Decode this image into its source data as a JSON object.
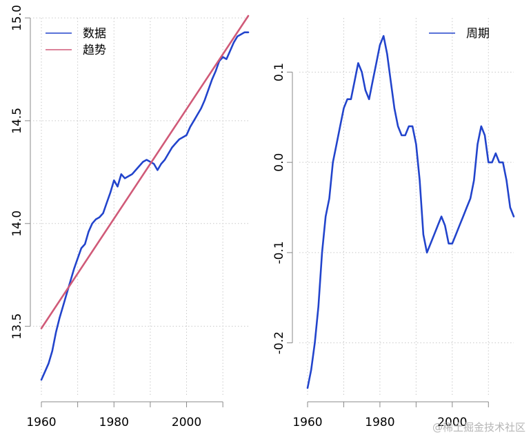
{
  "colors": {
    "data": "#2244cc",
    "trend": "#d05a78",
    "cycle": "#2244cc"
  },
  "watermark": "@稀土掘金技术社区",
  "chart_data": [
    {
      "type": "line",
      "xlim": [
        1960,
        2017
      ],
      "ylim": [
        13.2,
        15.0
      ],
      "x_ticks": [
        1960,
        1980,
        2000
      ],
      "x_ticks_unlabeled": [
        1970,
        1990,
        2010
      ],
      "y_ticks": [
        "13.5",
        "14.0",
        "14.5",
        "15.0"
      ],
      "grid": true,
      "legend_position": "top-left",
      "series": [
        {
          "name": "数据",
          "color": "#2244cc",
          "x": [
            1960,
            1961,
            1962,
            1963,
            1964,
            1965,
            1966,
            1967,
            1968,
            1969,
            1970,
            1971,
            1972,
            1973,
            1974,
            1975,
            1976,
            1977,
            1978,
            1979,
            1980,
            1981,
            1982,
            1983,
            1984,
            1985,
            1986,
            1987,
            1988,
            1989,
            1990,
            1991,
            1992,
            1993,
            1994,
            1995,
            1996,
            1997,
            1998,
            1999,
            2000,
            2001,
            2002,
            2003,
            2004,
            2005,
            2006,
            2007,
            2008,
            2009,
            2010,
            2011,
            2012,
            2013,
            2014,
            2015,
            2016,
            2017
          ],
          "values": [
            13.24,
            13.28,
            13.32,
            13.38,
            13.47,
            13.54,
            13.6,
            13.66,
            13.72,
            13.78,
            13.83,
            13.88,
            13.9,
            13.96,
            14.0,
            14.02,
            14.03,
            14.05,
            14.1,
            14.15,
            14.21,
            14.18,
            14.24,
            14.22,
            14.23,
            14.24,
            14.26,
            14.28,
            14.3,
            14.31,
            14.3,
            14.29,
            14.26,
            14.29,
            14.31,
            14.34,
            14.37,
            14.39,
            14.41,
            14.42,
            14.43,
            14.47,
            14.5,
            14.53,
            14.56,
            14.6,
            14.65,
            14.7,
            14.74,
            14.79,
            14.81,
            14.8,
            14.84,
            14.88,
            14.91,
            14.92,
            14.93,
            14.93
          ]
        },
        {
          "name": "趋势",
          "color": "#d05a78",
          "x": [
            1960,
            2017
          ],
          "values": [
            13.49,
            15.01
          ]
        }
      ]
    },
    {
      "type": "line",
      "xlim": [
        1960,
        2017
      ],
      "ylim": [
        -0.25,
        0.16
      ],
      "x_ticks": [
        1960,
        1980,
        2000
      ],
      "x_ticks_unlabeled": [
        1970,
        1990,
        2010
      ],
      "y_ticks": [
        "-0.2",
        "-0.1",
        "0.0",
        "0.1"
      ],
      "grid": true,
      "legend_position": "top-right",
      "series": [
        {
          "name": "周期",
          "color": "#2244cc",
          "x": [
            1960,
            1961,
            1962,
            1963,
            1964,
            1965,
            1966,
            1967,
            1968,
            1969,
            1970,
            1971,
            1972,
            1973,
            1974,
            1975,
            1976,
            1977,
            1978,
            1979,
            1980,
            1981,
            1982,
            1983,
            1984,
            1985,
            1986,
            1987,
            1988,
            1989,
            1990,
            1991,
            1992,
            1993,
            1994,
            1995,
            1996,
            1997,
            1998,
            1999,
            2000,
            2001,
            2002,
            2003,
            2004,
            2005,
            2006,
            2007,
            2008,
            2009,
            2010,
            2011,
            2012,
            2013,
            2014,
            2015,
            2016,
            2017
          ],
          "values": [
            -0.25,
            -0.23,
            -0.2,
            -0.16,
            -0.1,
            -0.06,
            -0.04,
            0.0,
            0.02,
            0.04,
            0.06,
            0.07,
            0.07,
            0.09,
            0.11,
            0.1,
            0.08,
            0.07,
            0.09,
            0.11,
            0.13,
            0.14,
            0.12,
            0.09,
            0.06,
            0.04,
            0.03,
            0.03,
            0.04,
            0.04,
            0.02,
            -0.02,
            -0.08,
            -0.1,
            -0.09,
            -0.08,
            -0.07,
            -0.06,
            -0.07,
            -0.09,
            -0.09,
            -0.08,
            -0.07,
            -0.06,
            -0.05,
            -0.04,
            -0.02,
            0.02,
            0.04,
            0.03,
            0.0,
            0.0,
            0.01,
            0.0,
            0.0,
            -0.02,
            -0.05,
            -0.06
          ]
        }
      ]
    }
  ]
}
